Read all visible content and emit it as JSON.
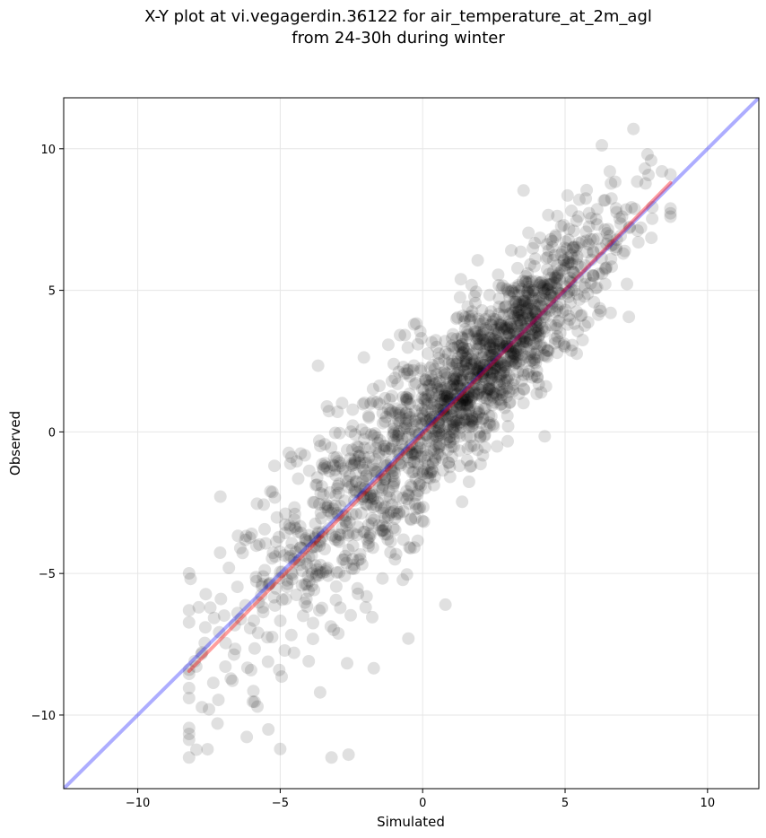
{
  "chart_data": {
    "type": "scatter",
    "title": "X-Y plot at vi.vegagerdin.36122 for air_temperature_at_2m_agl\nfrom 24-30h during winter",
    "title_lines": [
      "X-Y plot at vi.vegagerdin.36122 for air_temperature_at_2m_agl",
      "from 24-30h during winter"
    ],
    "xlabel": "Simulated",
    "ylabel": "Observed",
    "xlim": [
      -12.6,
      11.8
    ],
    "ylim": [
      -12.6,
      11.8
    ],
    "x_ticks": [
      -10,
      -5,
      0,
      5,
      10
    ],
    "y_ticks": [
      -10,
      -5,
      0,
      5,
      10
    ],
    "x_tick_labels": [
      "−10",
      "−5",
      "0",
      "5",
      "10"
    ],
    "y_tick_labels": [
      "−10",
      "−5",
      "0",
      "5",
      "10"
    ],
    "grid": true,
    "legend": "none",
    "point_color": "#000000",
    "point_opacity": 0.12,
    "point_count": 1800,
    "point_cloud": {
      "x_range": [
        -8.2,
        8.7
      ],
      "y_range": [
        -11.5,
        10.7
      ],
      "center_line": {
        "slope": 1.02,
        "intercept": 0.1
      },
      "residual_std": 1.35
    },
    "sample_points": [
      [
        -8.0,
        -8.1
      ],
      [
        -7.5,
        -9.8
      ],
      [
        -7.2,
        -10.3
      ],
      [
        -6.8,
        -4.8
      ],
      [
        -6.5,
        -6.4
      ],
      [
        -6.0,
        -3.6
      ],
      [
        -5.8,
        -9.7
      ],
      [
        -5.2,
        -1.2
      ],
      [
        -5.0,
        -11.2
      ],
      [
        -4.8,
        -5.9
      ],
      [
        -4.5,
        -3.1
      ],
      [
        -4.0,
        -8.1
      ],
      [
        -3.6,
        -9.2
      ],
      [
        -3.2,
        -11.5
      ],
      [
        -3.0,
        -2.0
      ],
      [
        -2.6,
        -11.4
      ],
      [
        -2.0,
        -6.2
      ],
      [
        -1.6,
        -0.2
      ],
      [
        -1.0,
        -1.8
      ],
      [
        -0.5,
        -7.3
      ],
      [
        -0.3,
        3.8
      ],
      [
        0.0,
        -1.4
      ],
      [
        0.3,
        1.5
      ],
      [
        0.8,
        -6.1
      ],
      [
        1.2,
        2.4
      ],
      [
        1.5,
        0.4
      ],
      [
        2.0,
        3.9
      ],
      [
        2.5,
        3.1
      ],
      [
        3.0,
        0.2
      ],
      [
        3.5,
        4.6
      ],
      [
        4.0,
        3.7
      ],
      [
        4.5,
        6.8
      ],
      [
        5.0,
        3.0
      ],
      [
        5.5,
        8.2
      ],
      [
        6.0,
        5.5
      ],
      [
        6.6,
        4.2
      ],
      [
        7.0,
        7.6
      ],
      [
        7.4,
        10.7
      ],
      [
        7.8,
        9.3
      ],
      [
        8.4,
        9.2
      ]
    ],
    "series": [
      {
        "kind": "identity",
        "color": "#0000ff",
        "opacity": 0.32,
        "x": [
          -12.6,
          11.8
        ],
        "y": [
          -12.6,
          11.8
        ]
      },
      {
        "kind": "fit",
        "color": "#ff0000",
        "opacity": 0.38,
        "x": [
          -8.2,
          8.7
        ],
        "y": [
          -8.45,
          8.8
        ]
      }
    ]
  }
}
